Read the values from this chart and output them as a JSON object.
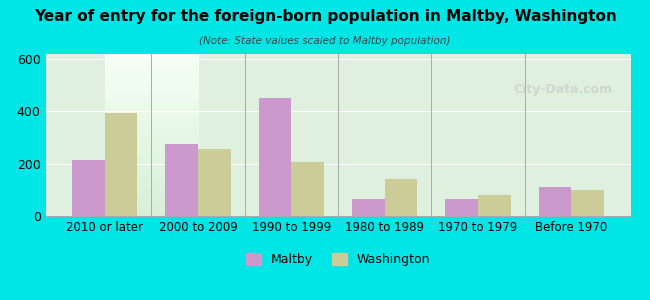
{
  "title": "Year of entry for the foreign-born population in Maltby, Washington",
  "subtitle": "(Note: State values scaled to Maltby population)",
  "categories": [
    "2010 or later",
    "2000 to 2009",
    "1990 to 1999",
    "1980 to 1989",
    "1970 to 1979",
    "Before 1970"
  ],
  "maltby_values": [
    215,
    275,
    450,
    65,
    65,
    110
  ],
  "washington_values": [
    395,
    255,
    205,
    140,
    80,
    100
  ],
  "maltby_color": "#cc99cc",
  "washington_color": "#cccc99",
  "background_outer": "#00e5e5",
  "background_inner_top": "#e8f5e8",
  "background_inner_bottom": "#f0f8f0",
  "ylim": [
    0,
    620
  ],
  "yticks": [
    0,
    200,
    400,
    600
  ],
  "bar_width": 0.35,
  "legend_maltby": "Maltby",
  "legend_washington": "Washington",
  "watermark": "City-Data.com"
}
